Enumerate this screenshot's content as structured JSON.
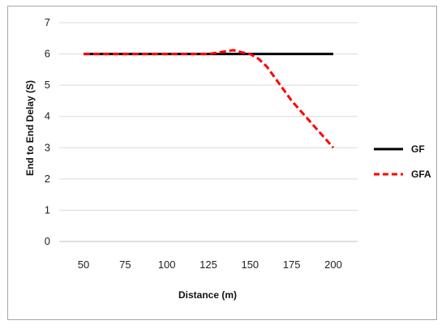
{
  "chart_data": {
    "type": "line",
    "title": "",
    "xlabel": "Distance (m)",
    "ylabel": "End to End Delay  (S)",
    "x": [
      50,
      75,
      100,
      125,
      150,
      175,
      200
    ],
    "x_ticks": [
      "50",
      "75",
      "100",
      "125",
      "150",
      "175",
      "200"
    ],
    "y_ticks": [
      "0",
      "1",
      "2",
      "3",
      "4",
      "5",
      "6",
      "7"
    ],
    "ylim": [
      0,
      7
    ],
    "grid": "horizontal",
    "legend_position": "right",
    "series": [
      {
        "name": "GF",
        "color": "#000000",
        "style": "solid",
        "points": [
          [
            50,
            6
          ],
          [
            75,
            6
          ],
          [
            100,
            6
          ],
          [
            125,
            6
          ],
          [
            150,
            6
          ],
          [
            175,
            6
          ],
          [
            200,
            6
          ]
        ]
      },
      {
        "name": "GFA",
        "color": "#ff0000",
        "style": "dashed",
        "points": [
          [
            50,
            6
          ],
          [
            75,
            6
          ],
          [
            100,
            6
          ],
          [
            125,
            6
          ],
          [
            135,
            6.08
          ],
          [
            140,
            6.12
          ],
          [
            145,
            6.05
          ],
          [
            150,
            6
          ],
          [
            155,
            5.85
          ],
          [
            160,
            5.6
          ],
          [
            175,
            4.5
          ],
          [
            200,
            3
          ]
        ]
      }
    ]
  }
}
